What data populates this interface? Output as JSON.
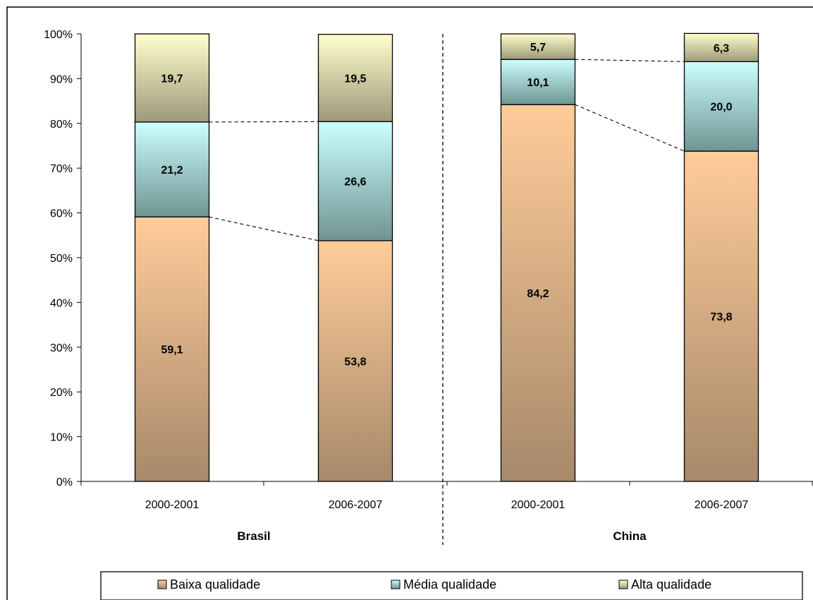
{
  "chart_data": {
    "type": "bar",
    "stacked": true,
    "percent_stacked": true,
    "y_tick_labels": [
      "0%",
      "10%",
      "20%",
      "30%",
      "40%",
      "50%",
      "60%",
      "70%",
      "80%",
      "90%",
      "100%"
    ],
    "ylim": [
      0,
      100
    ],
    "grid": false,
    "groups": [
      {
        "label": "Brasil",
        "categories": [
          "2000-2001",
          "2006-2007"
        ]
      },
      {
        "label": "China",
        "categories": [
          "2000-2001",
          "2006-2007"
        ]
      }
    ],
    "bars": [
      {
        "group": "Brasil",
        "category": "2000-2001",
        "values": [
          59.1,
          21.2,
          19.7
        ],
        "value_labels": [
          "59,1",
          "21,2",
          "19,7"
        ]
      },
      {
        "group": "Brasil",
        "category": "2006-2007",
        "values": [
          53.8,
          26.6,
          19.5
        ],
        "value_labels": [
          "53,8",
          "26,6",
          "19,5"
        ]
      },
      {
        "group": "China",
        "category": "2000-2001",
        "values": [
          84.2,
          10.1,
          5.7
        ],
        "value_labels": [
          "84,2",
          "10,1",
          "5,7"
        ]
      },
      {
        "group": "China",
        "category": "2006-2007",
        "values": [
          73.8,
          20.0,
          6.3
        ],
        "value_labels": [
          "73,8",
          "20,0",
          "6,3"
        ]
      }
    ],
    "series": [
      {
        "name": "Baixa qualidade",
        "color_top": "#ffcc99",
        "color_bottom": "#a6896a"
      },
      {
        "name": "Média qualidade",
        "color_top": "#ccffff",
        "color_bottom": "#6f9493"
      },
      {
        "name": "Alta qualidade",
        "color_top": "#ffffcc",
        "color_bottom": "#9e987a"
      }
    ],
    "legend_position": "bottom",
    "connector_lines": "dashed"
  }
}
